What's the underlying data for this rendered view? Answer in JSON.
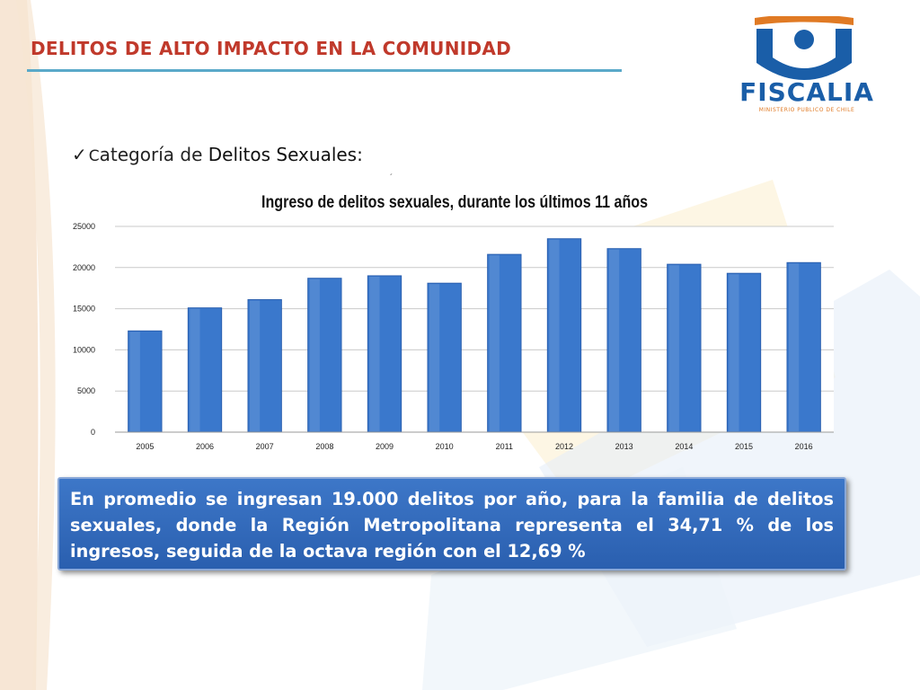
{
  "header": {
    "title": "DELITOS DE ALTO IMPACTO EN LA COMUNIDAD"
  },
  "logo": {
    "name": "FISCALIA",
    "subtitle": "MINISTERIO PUBLICO DE CHILE",
    "colors": {
      "blue": "#1a5ea8",
      "orange": "#e07a24"
    }
  },
  "bullet": {
    "check": "✓",
    "initial": "C",
    "prefix": "ategoría de ",
    "highlight": "Delitos Sexuales:"
  },
  "stray_mark": "´",
  "chart_data": {
    "type": "bar",
    "title": "Ingreso de delitos sexuales, durante los últimos 11 años",
    "categories": [
      "2005",
      "2006",
      "2007",
      "2008",
      "2009",
      "2010",
      "2011",
      "2012",
      "2013",
      "2014",
      "2015",
      "2016"
    ],
    "values": [
      12300,
      15100,
      16100,
      18700,
      19000,
      18100,
      21600,
      23500,
      22300,
      20400,
      19300,
      20600
    ],
    "ylim": [
      0,
      25000
    ],
    "yticks": [
      0,
      5000,
      10000,
      15000,
      20000,
      25000
    ],
    "grid": true,
    "bar_color": "#3a78cc"
  },
  "callout": {
    "text": "En promedio se ingresan 19.000 delitos por año, para la familia de delitos sexuales, donde la Región Metropolitana representa el 34,71 % de los ingresos, seguida de la octava región con el 12,69 %"
  },
  "colors": {
    "title": "#c0392b",
    "rule": "#5aa9c9",
    "callout_bg": "#2f68b8"
  }
}
